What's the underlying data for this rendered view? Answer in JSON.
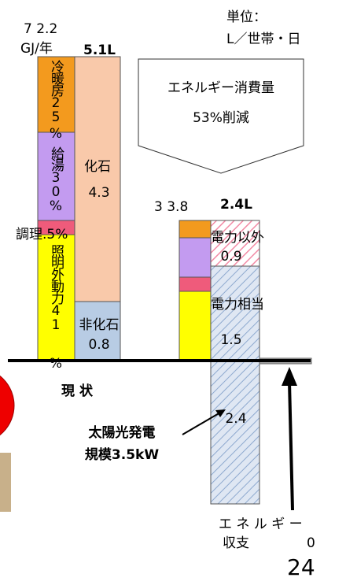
{
  "header": {
    "unit_label": "単位：",
    "unit": "L／世帯・日"
  },
  "current": {
    "total_energy": "7 2.2",
    "energy_unit": "GJ/年",
    "total_volume": "5.1L",
    "segments": {
      "cooling_heating": "冷暖房25",
      "cooling_heating_pct": "%",
      "hot_water": "給湯30",
      "hot_water_pct": "%",
      "cooking": "調理.5%",
      "lighting": "照明外動力41",
      "lighting_pct": "%"
    },
    "fossil": {
      "label": "化石",
      "value": "4.3"
    },
    "non_fossil": {
      "label": "非化石",
      "value": "0.8"
    },
    "caption": "現 状"
  },
  "reduction": {
    "line1": "エネルギー消費量",
    "line2": "53%削減"
  },
  "future": {
    "total_energy": "3 3.8",
    "total_volume": "2.4L",
    "non_electric": {
      "label": "電力以外",
      "value": "0.9"
    },
    "electric": {
      "label": "電力相当",
      "value": "1.5"
    },
    "solar_value": "2.4",
    "solar_label1": "太陽光発電",
    "solar_label2": "規模3.5kW"
  },
  "balance": {
    "label1": "エ ネ ル ギ ー",
    "label2": "収支",
    "value": "0"
  },
  "page_number": "24"
}
